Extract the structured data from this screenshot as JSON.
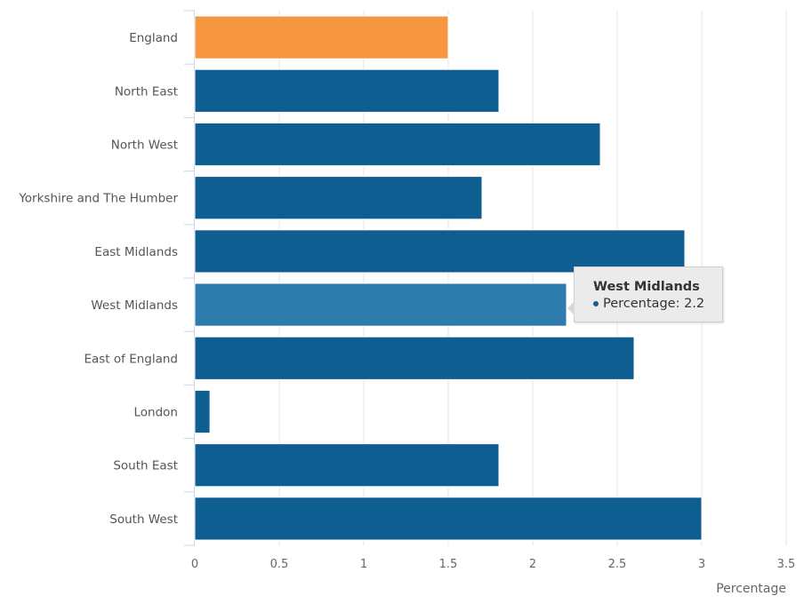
{
  "chart_data": {
    "type": "bar",
    "orientation": "horizontal",
    "categories": [
      "England",
      "North East",
      "North West",
      "Yorkshire and The Humber",
      "East Midlands",
      "West Midlands",
      "East of England",
      "London",
      "South East",
      "South West"
    ],
    "series": [
      {
        "name": "Percentage",
        "values": [
          1.5,
          1.8,
          2.4,
          1.7,
          2.9,
          2.2,
          2.6,
          0.09,
          1.8,
          3.0
        ]
      }
    ],
    "xlabel": "Percentage",
    "xlim": [
      0,
      3.5
    ],
    "xticks": [
      0,
      0.5,
      1,
      1.5,
      2,
      2.5,
      3,
      3.5
    ],
    "xtick_labels": [
      "0",
      "0.5",
      "1",
      "1.5",
      "2",
      "2.5",
      "3",
      "3.5"
    ],
    "grid": true,
    "colors": {
      "default": "#0f5e91",
      "highlight": "#f79640",
      "hover": "#2e7bad",
      "grid": "#e6e6e6",
      "axis": "#ccd6eb"
    },
    "highlighted_category": "England",
    "hovered_category": "West Midlands"
  },
  "tooltip": {
    "title": "West Midlands",
    "series_label": "Percentage: 2.2",
    "dot_color": "#0f5e91"
  }
}
